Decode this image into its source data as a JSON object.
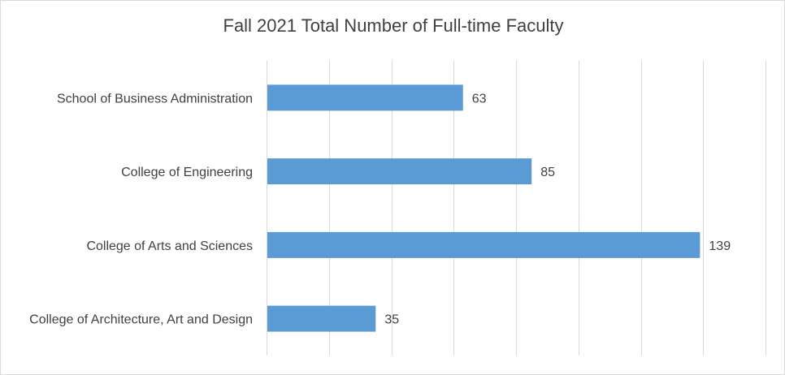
{
  "chart_data": {
    "type": "bar",
    "orientation": "horizontal",
    "title": "Fall 2021 Total Number of Full-time Faculty",
    "categories": [
      "School of Business Administration",
      "College of Engineering",
      "College of Arts and Sciences",
      "College of Architecture, Art and Design"
    ],
    "values": [
      63,
      85,
      139,
      35
    ],
    "xlim": [
      0,
      160
    ],
    "grid": "vertical",
    "x_axis_labels_shown": false,
    "data_labels": true,
    "bar_color": "#5B9BD5",
    "gridline_color": "#d9d9d9",
    "text_color": "#404040"
  }
}
